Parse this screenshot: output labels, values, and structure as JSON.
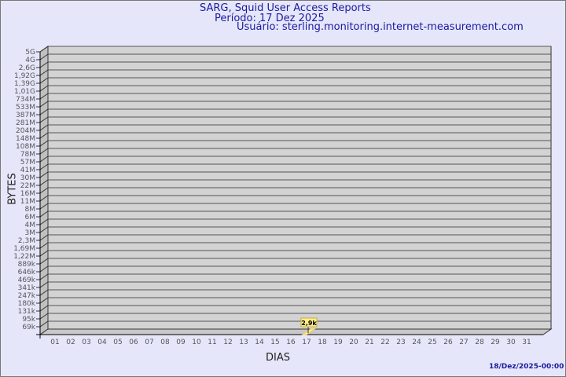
{
  "header": {
    "title": "SARG, Squid User Access Reports",
    "period": "Período: 17 Dez 2025",
    "user": "Usuário: sterling.monitoring.internet-measurement.com"
  },
  "footer": {
    "timestamp": "18/Dez/2025-00:00"
  },
  "colors": {
    "background": "#e6e6fa",
    "title": "#1a1aa0",
    "plot": "#d3d3d3",
    "bar": "#ffee88"
  },
  "chart_data": {
    "type": "bar",
    "xlabel": "DIAS",
    "ylabel": "BYTES",
    "y_scale": "log",
    "y_tick_labels": [
      "5G",
      "4G",
      "2,6G",
      "1,92G",
      "1,39G",
      "1,01G",
      "734M",
      "533M",
      "387M",
      "281M",
      "204M",
      "148M",
      "108M",
      "78M",
      "57M",
      "41M",
      "30M",
      "22M",
      "16M",
      "11M",
      "8M",
      "6M",
      "4M",
      "3M",
      "2,3M",
      "1,69M",
      "1,22M",
      "889k",
      "646k",
      "469k",
      "341k",
      "247k",
      "180k",
      "131k",
      "95k",
      "69k"
    ],
    "categories": [
      "01",
      "02",
      "03",
      "04",
      "05",
      "06",
      "07",
      "08",
      "09",
      "10",
      "11",
      "12",
      "13",
      "14",
      "15",
      "16",
      "17",
      "18",
      "19",
      "20",
      "21",
      "22",
      "23",
      "24",
      "25",
      "26",
      "27",
      "28",
      "29",
      "30",
      "31"
    ],
    "values": [
      null,
      null,
      null,
      null,
      null,
      null,
      null,
      null,
      null,
      null,
      null,
      null,
      null,
      null,
      null,
      null,
      2900,
      null,
      null,
      null,
      null,
      null,
      null,
      null,
      null,
      null,
      null,
      null,
      null,
      null,
      null
    ],
    "data_labels": {
      "17": "2,9k"
    },
    "grid": true
  }
}
